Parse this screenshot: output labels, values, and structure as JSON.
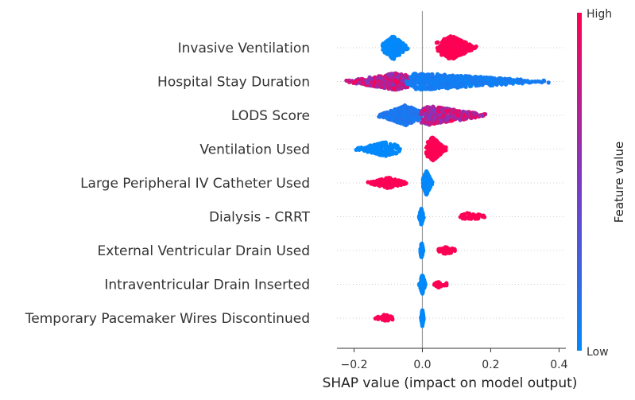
{
  "chart_data": {
    "type": "scatter",
    "subtype": "shap-beeswarm",
    "xlabel": "SHAP value (impact on model output)",
    "xlim": [
      -0.25,
      0.42
    ],
    "xticks": [
      -0.2,
      0.0,
      0.2,
      0.4
    ],
    "xtick_labels": [
      "−0.2",
      "0.0",
      "0.2",
      "0.4"
    ],
    "zero_line": 0.0,
    "colorbar": {
      "label": "Feature value",
      "high_label": "High",
      "low_label": "Low",
      "low_color": "#008afb",
      "mid_color": "#7d39c4",
      "high_color": "#ff0052"
    },
    "features": [
      {
        "name": "Invasive Ventilation",
        "groups": [
          {
            "min": -0.12,
            "max": -0.04,
            "mode": -0.085,
            "value": 0.0,
            "count": 260,
            "spread": 1.0
          },
          {
            "min": 0.04,
            "max": 0.16,
            "mode": 0.085,
            "value": 1.0,
            "count": 330,
            "spread": 1.0
          }
        ]
      },
      {
        "name": "Hospital Stay Duration",
        "groups": [
          {
            "min": -0.23,
            "max": -0.02,
            "mode": -0.08,
            "value": 0.75,
            "count": 420,
            "spread": 0.7
          },
          {
            "min": -0.05,
            "max": 0.38,
            "mode": 0.0,
            "value": 0.08,
            "count": 520,
            "spread": 0.7
          }
        ]
      },
      {
        "name": "LODS Score",
        "groups": [
          {
            "min": -0.13,
            "max": 0.0,
            "mode": -0.05,
            "value": 0.12,
            "count": 330,
            "spread": 0.85
          },
          {
            "min": -0.01,
            "max": 0.2,
            "mode": 0.02,
            "value": 0.75,
            "count": 360,
            "spread": 0.8
          }
        ]
      },
      {
        "name": "Ventilation Used",
        "groups": [
          {
            "min": -0.2,
            "max": -0.06,
            "mode": -0.11,
            "value": 0.0,
            "count": 170,
            "spread": 0.6
          },
          {
            "min": 0.01,
            "max": 0.07,
            "mode": 0.03,
            "value": 1.0,
            "count": 310,
            "spread": 1.0
          }
        ]
      },
      {
        "name": "Large Peripheral IV Catheter Used",
        "groups": [
          {
            "min": -0.16,
            "max": -0.04,
            "mode": -0.1,
            "value": 1.0,
            "count": 150,
            "spread": 0.45
          },
          {
            "min": 0.0,
            "max": 0.03,
            "mode": 0.012,
            "value": 0.0,
            "count": 230,
            "spread": 1.0
          }
        ]
      },
      {
        "name": "Dialysis - CRRT",
        "groups": [
          {
            "min": -0.01,
            "max": 0.004,
            "mode": -0.003,
            "value": 0.0,
            "count": 130,
            "spread": 0.7
          },
          {
            "min": 0.09,
            "max": 0.2,
            "mode": 0.14,
            "value": 1.0,
            "count": 40,
            "spread": 0.35
          }
        ]
      },
      {
        "name": "External Ventricular Drain Used",
        "groups": [
          {
            "min": -0.006,
            "max": 0.003,
            "mode": -0.002,
            "value": 0.0,
            "count": 110,
            "spread": 0.7
          },
          {
            "min": 0.04,
            "max": 0.11,
            "mode": 0.07,
            "value": 1.0,
            "count": 55,
            "spread": 0.3
          }
        ]
      },
      {
        "name": "Intraventricular Drain Inserted",
        "groups": [
          {
            "min": -0.01,
            "max": 0.01,
            "mode": 0.0,
            "value": 0.0,
            "count": 130,
            "spread": 0.8
          },
          {
            "min": 0.03,
            "max": 0.08,
            "mode": 0.05,
            "value": 1.0,
            "count": 30,
            "spread": 0.3
          }
        ]
      },
      {
        "name": "Temporary Pacemaker Wires Discontinued",
        "groups": [
          {
            "min": -0.004,
            "max": 0.004,
            "mode": 0.0,
            "value": 0.0,
            "count": 120,
            "spread": 0.7
          },
          {
            "min": -0.15,
            "max": -0.07,
            "mode": -0.11,
            "value": 1.0,
            "count": 40,
            "spread": 0.3
          }
        ]
      }
    ]
  }
}
